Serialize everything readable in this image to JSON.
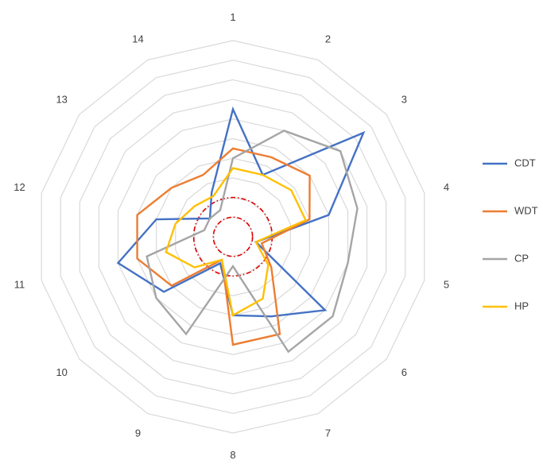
{
  "chart_data": {
    "type": "radar",
    "categories": [
      "1",
      "2",
      "3",
      "4",
      "5",
      "6",
      "7",
      "8",
      "9",
      "10",
      "11",
      "12",
      "13",
      "14"
    ],
    "rlim": [
      0,
      10
    ],
    "rings": 10,
    "grid": true,
    "legend_position": "right",
    "series": [
      {
        "name": "CDT",
        "color": "#4472C4",
        "values": [
          6.5,
          3.5,
          8.5,
          5.0,
          1.2,
          6.0,
          4.5,
          4.0,
          1.5,
          4.5,
          6.0,
          4.0,
          1.5,
          2.5
        ]
      },
      {
        "name": "WDT",
        "color": "#ED7D31",
        "values": [
          4.5,
          4.5,
          5.0,
          4.0,
          1.5,
          2.5,
          5.5,
          5.5,
          1.3,
          4.0,
          5.0,
          5.0,
          4.0,
          3.5
        ]
      },
      {
        "name": "CP",
        "color": "#A5A5A5",
        "values": [
          4.0,
          6.0,
          7.0,
          6.5,
          6.0,
          6.5,
          6.5,
          1.5,
          5.5,
          5.0,
          4.5,
          1.5,
          1.5,
          1.5
        ]
      },
      {
        "name": "HP",
        "color": "#FFC000",
        "values": [
          3.5,
          3.5,
          3.8,
          3.8,
          1.2,
          2.3,
          3.5,
          4.0,
          1.3,
          2.5,
          3.5,
          3.0,
          2.5,
          2.3
        ]
      }
    ],
    "reference_circles": [
      {
        "radius": 1,
        "color": "#E00000"
      },
      {
        "radius": 2,
        "color": "#E00000"
      }
    ]
  }
}
